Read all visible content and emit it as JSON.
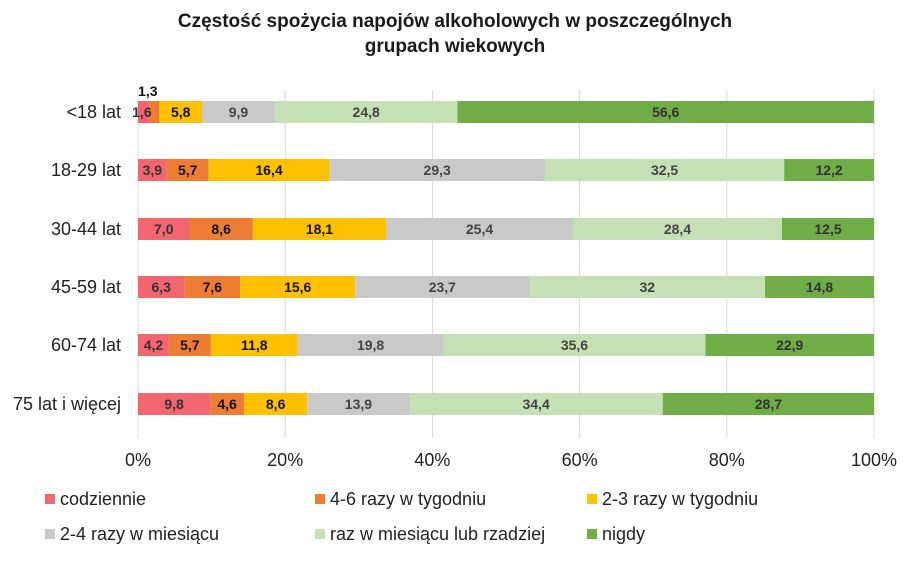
{
  "chart_data": {
    "type": "bar",
    "orientation": "horizontal",
    "stacked": "percent",
    "title": "Częstość spożycia napojów alkoholowych w poszczególnych grupach wiekowych",
    "title_lines": [
      "Częstość spożycia napojów alkoholowych w poszczególnych",
      "grupach wiekowych"
    ],
    "categories": [
      "<18 lat",
      "18-29 lat",
      "30-44 lat",
      "45-59 lat",
      "60-74 lat",
      "75 lat i więcej"
    ],
    "series": [
      {
        "name": "codziennie",
        "color": "#f4666f",
        "label_color": "#333333",
        "values": [
          1.6,
          3.9,
          7.0,
          6.3,
          4.2,
          9.8
        ],
        "labels": [
          "1,6",
          "3,9",
          "7,0",
          "6,3",
          "4,2",
          "9,8"
        ]
      },
      {
        "name": "4-6 razy w tygodniu",
        "color": "#ee7d33",
        "label_color": "#111111",
        "values": [
          1.3,
          5.7,
          8.6,
          7.6,
          5.7,
          4.6
        ],
        "labels": [
          "1,3",
          "5,7",
          "8,6",
          "7,6",
          "5,7",
          "4,6"
        ]
      },
      {
        "name": "2-3 razy w tygodniu",
        "color": "#ffc000",
        "label_color": "#111111",
        "values": [
          5.8,
          16.4,
          18.1,
          15.6,
          11.8,
          8.6
        ],
        "labels": [
          "5,8",
          "16,4",
          "18,1",
          "15,6",
          "11,8",
          "8,6"
        ]
      },
      {
        "name": "2-4 razy w miesiącu",
        "color": "#c9c9c9",
        "label_color": "#444444",
        "values": [
          9.9,
          29.3,
          25.4,
          23.7,
          19.8,
          13.9
        ],
        "labels": [
          "9,9",
          "29,3",
          "25,4",
          "23,7",
          "19,8",
          "13,9"
        ]
      },
      {
        "name": "raz w miesiącu lub rzadziej",
        "color": "#c5e0b4",
        "label_color": "#444444",
        "values": [
          24.8,
          32.5,
          28.4,
          32,
          35.6,
          34.4
        ],
        "labels": [
          "24,8",
          "32,5",
          "28,4",
          "32",
          "35,6",
          "34,4"
        ]
      },
      {
        "name": "nigdy",
        "color": "#70ad47",
        "label_color": "#333333",
        "values": [
          56.6,
          12.2,
          12.5,
          14.8,
          22.9,
          28.7
        ],
        "labels": [
          "56,6",
          "12,2",
          "12,5",
          "14,8",
          "22,9",
          "28,7"
        ]
      }
    ],
    "xlim": [
      0,
      100
    ],
    "x_ticks": [
      0,
      20,
      40,
      60,
      80,
      100
    ],
    "x_tick_labels": [
      "0%",
      "20%",
      "40%",
      "60%",
      "80%",
      "100%"
    ],
    "grid": true,
    "legend_position": "bottom",
    "xlabel": "",
    "ylabel": ""
  }
}
